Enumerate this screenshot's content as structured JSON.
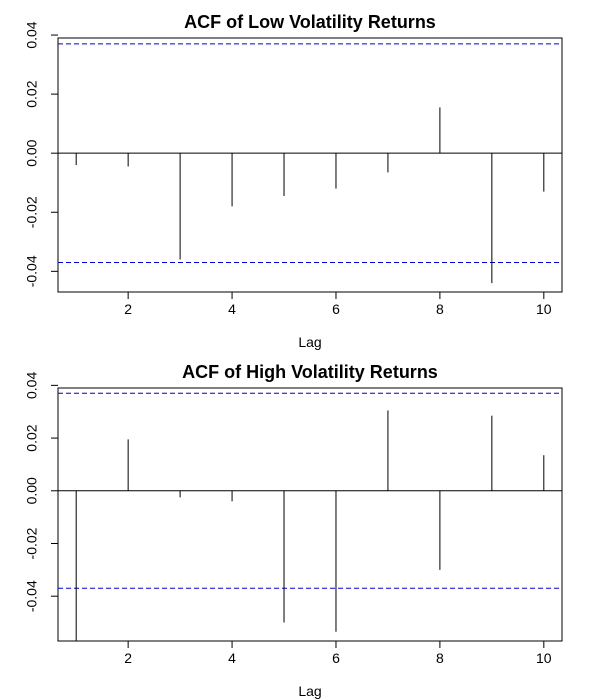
{
  "chart_data": [
    {
      "type": "bar",
      "title": "ACF of Low Volatility Returns",
      "xlabel": "Lag",
      "ylabel": "",
      "x": [
        1,
        2,
        3,
        4,
        5,
        6,
        7,
        8,
        9,
        10
      ],
      "values": [
        -0.004,
        -0.0045,
        -0.036,
        -0.018,
        -0.0145,
        -0.012,
        -0.0065,
        0.0155,
        -0.044,
        -0.013
      ],
      "xlim": [
        0.65,
        10.35
      ],
      "ylim": [
        -0.047,
        0.039
      ],
      "x_ticks": [
        2,
        4,
        6,
        8,
        10
      ],
      "y_ticks": [
        -0.04,
        -0.02,
        0.0,
        0.02,
        0.04
      ],
      "y_tick_labels": [
        "-0.04",
        "-0.02",
        "0.00",
        "0.02",
        "0.04"
      ],
      "confidence_bound": 0.037,
      "zero_line": true,
      "grid": false,
      "colors": {
        "bars": "#000000",
        "confidence": "#0000cc",
        "frame": "#000000"
      }
    },
    {
      "type": "bar",
      "title": "ACF of High Volatility Returns",
      "xlabel": "Lag",
      "ylabel": "",
      "x": [
        1,
        2,
        3,
        4,
        5,
        6,
        7,
        8,
        9,
        10
      ],
      "values": [
        -0.057,
        0.0195,
        -0.0025,
        -0.004,
        -0.05,
        -0.0535,
        0.0305,
        -0.03,
        0.0285,
        0.0135
      ],
      "xlim": [
        0.65,
        10.35
      ],
      "ylim": [
        -0.057,
        0.039
      ],
      "x_ticks": [
        2,
        4,
        6,
        8,
        10
      ],
      "y_ticks": [
        -0.04,
        -0.02,
        0.0,
        0.02,
        0.04
      ],
      "y_tick_labels": [
        "-0.04",
        "-0.02",
        "0.00",
        "0.02",
        "0.04"
      ],
      "confidence_bound": 0.037,
      "zero_line": true,
      "grid": false,
      "colors": {
        "bars": "#000000",
        "confidence": "#0000cc",
        "frame": "#000000"
      }
    }
  ]
}
